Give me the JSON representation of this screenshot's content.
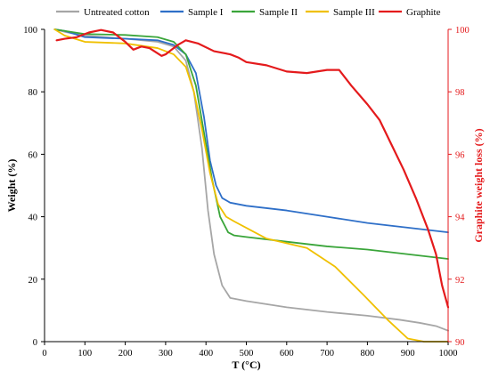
{
  "chart_data": {
    "type": "line",
    "x_axis": {
      "label": "T (°C)",
      "range": [
        0,
        1000
      ],
      "ticks": [
        0,
        100,
        200,
        300,
        400,
        500,
        600,
        700,
        800,
        900,
        1000
      ]
    },
    "y_axis_left": {
      "label": "Weight (%)",
      "range": [
        0,
        100
      ],
      "ticks": [
        0,
        20,
        40,
        60,
        80,
        100
      ]
    },
    "y_axis_right": {
      "label": "Graphite weight loss (%)",
      "range": [
        90,
        100
      ],
      "ticks": [
        90,
        92,
        94,
        96,
        98,
        100
      ],
      "color": "#e41a1c"
    },
    "grid": false,
    "legend_position": "top",
    "series": [
      {
        "name": "Untreated cotton",
        "axis": "left",
        "color": "#a6a6a6",
        "points": [
          [
            25,
            100
          ],
          [
            50,
            99.2
          ],
          [
            100,
            98
          ],
          [
            200,
            97
          ],
          [
            280,
            96
          ],
          [
            320,
            94.5
          ],
          [
            350,
            90
          ],
          [
            370,
            80
          ],
          [
            390,
            62
          ],
          [
            405,
            42
          ],
          [
            420,
            28
          ],
          [
            440,
            18
          ],
          [
            460,
            14
          ],
          [
            500,
            13
          ],
          [
            600,
            11
          ],
          [
            700,
            9.5
          ],
          [
            800,
            8.3
          ],
          [
            880,
            7
          ],
          [
            930,
            6
          ],
          [
            970,
            5
          ],
          [
            1000,
            3.5
          ]
        ]
      },
      {
        "name": "Sample I",
        "axis": "left",
        "color": "#2e6fc8",
        "points": [
          [
            25,
            100
          ],
          [
            50,
            99.5
          ],
          [
            100,
            97.5
          ],
          [
            200,
            97
          ],
          [
            280,
            96.5
          ],
          [
            320,
            95
          ],
          [
            350,
            92
          ],
          [
            375,
            86
          ],
          [
            395,
            72
          ],
          [
            410,
            58
          ],
          [
            425,
            50
          ],
          [
            440,
            46
          ],
          [
            460,
            44.5
          ],
          [
            500,
            43.5
          ],
          [
            600,
            42
          ],
          [
            700,
            40
          ],
          [
            800,
            38
          ],
          [
            900,
            36.5
          ],
          [
            1000,
            35
          ]
        ]
      },
      {
        "name": "Sample II",
        "axis": "left",
        "color": "#3aa53a",
        "points": [
          [
            25,
            100
          ],
          [
            50,
            99.5
          ],
          [
            100,
            98.5
          ],
          [
            200,
            98.2
          ],
          [
            280,
            97.5
          ],
          [
            320,
            96
          ],
          [
            350,
            92
          ],
          [
            375,
            82
          ],
          [
            395,
            67
          ],
          [
            415,
            52
          ],
          [
            435,
            40
          ],
          [
            455,
            35
          ],
          [
            470,
            34
          ],
          [
            500,
            33.5
          ],
          [
            600,
            32
          ],
          [
            700,
            30.5
          ],
          [
            800,
            29.5
          ],
          [
            900,
            28
          ],
          [
            1000,
            26.5
          ]
        ]
      },
      {
        "name": "Sample III",
        "axis": "left",
        "color": "#f0c000",
        "points": [
          [
            25,
            100
          ],
          [
            50,
            98
          ],
          [
            100,
            96
          ],
          [
            200,
            95.5
          ],
          [
            280,
            94
          ],
          [
            320,
            92
          ],
          [
            350,
            88
          ],
          [
            370,
            80
          ],
          [
            390,
            68
          ],
          [
            410,
            54
          ],
          [
            430,
            44
          ],
          [
            450,
            40
          ],
          [
            470,
            38.5
          ],
          [
            550,
            33
          ],
          [
            650,
            30
          ],
          [
            720,
            24
          ],
          [
            790,
            15
          ],
          [
            850,
            7
          ],
          [
            900,
            1
          ],
          [
            940,
            0
          ],
          [
            1000,
            0
          ]
        ]
      },
      {
        "name": "Graphite",
        "axis": "right",
        "color": "#e41a1c",
        "points": [
          [
            30,
            99.65
          ],
          [
            50,
            99.7
          ],
          [
            80,
            99.75
          ],
          [
            110,
            99.9
          ],
          [
            140,
            99.98
          ],
          [
            170,
            99.9
          ],
          [
            200,
            99.6
          ],
          [
            220,
            99.35
          ],
          [
            240,
            99.45
          ],
          [
            260,
            99.4
          ],
          [
            290,
            99.15
          ],
          [
            300,
            99.2
          ],
          [
            330,
            99.5
          ],
          [
            350,
            99.65
          ],
          [
            380,
            99.55
          ],
          [
            420,
            99.3
          ],
          [
            460,
            99.2
          ],
          [
            480,
            99.1
          ],
          [
            500,
            98.95
          ],
          [
            550,
            98.85
          ],
          [
            600,
            98.65
          ],
          [
            650,
            98.6
          ],
          [
            700,
            98.7
          ],
          [
            730,
            98.7
          ],
          [
            760,
            98.2
          ],
          [
            800,
            97.6
          ],
          [
            830,
            97.1
          ],
          [
            860,
            96.3
          ],
          [
            890,
            95.5
          ],
          [
            920,
            94.6
          ],
          [
            950,
            93.6
          ],
          [
            970,
            92.8
          ],
          [
            985,
            91.8
          ],
          [
            1000,
            91.1
          ]
        ]
      }
    ]
  }
}
